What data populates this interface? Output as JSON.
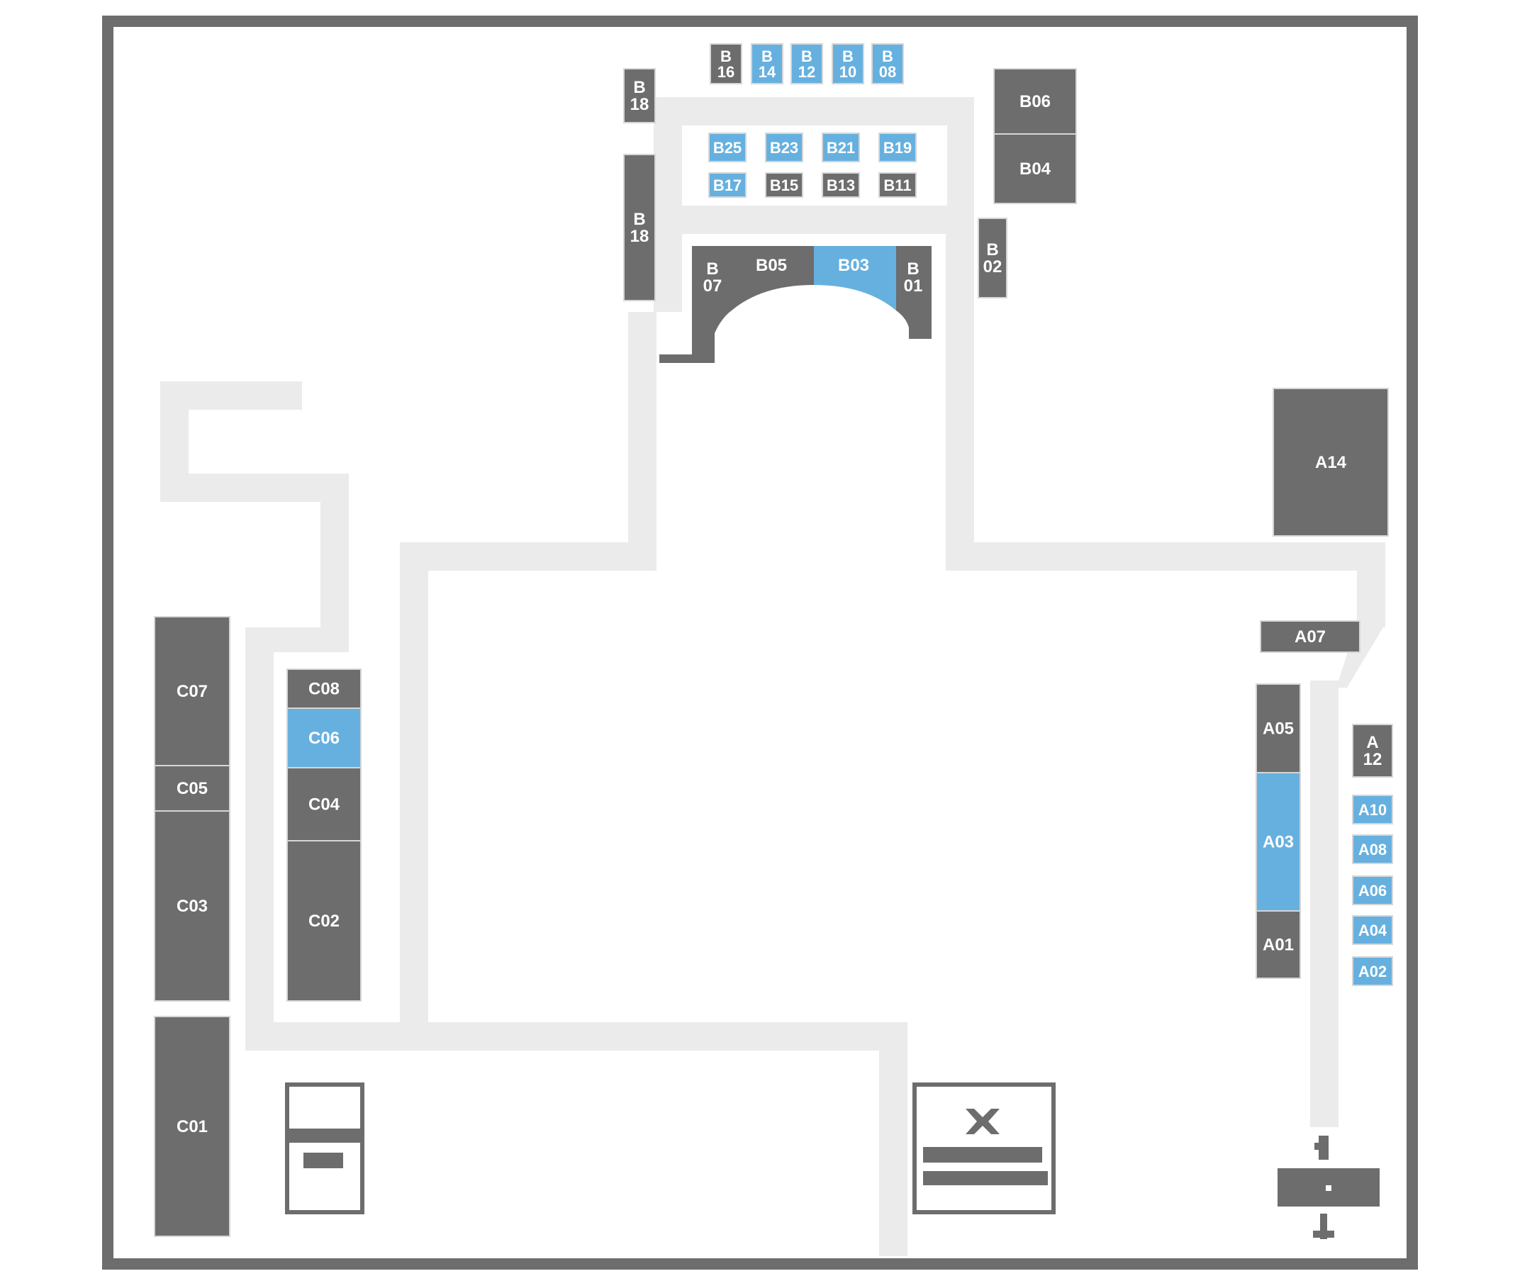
{
  "colors": {
    "occupied": "#6d6d6d",
    "available": "#66b0df",
    "aisle": "#ebebeb",
    "wall": "#6d6d6d",
    "background": "#ffffff",
    "label": "#ffffff"
  },
  "booths": [
    {
      "id": "B16",
      "lines": [
        "B",
        "16"
      ],
      "status": "occupied"
    },
    {
      "id": "B14",
      "lines": [
        "B",
        "14"
      ],
      "status": "available"
    },
    {
      "id": "B12",
      "lines": [
        "B",
        "12"
      ],
      "status": "available"
    },
    {
      "id": "B10",
      "lines": [
        "B",
        "10"
      ],
      "status": "available"
    },
    {
      "id": "B08",
      "lines": [
        "B",
        "08"
      ],
      "status": "available"
    },
    {
      "id": "B18-upper",
      "lines": [
        "B",
        "18"
      ],
      "status": "occupied"
    },
    {
      "id": "B18-lower",
      "lines": [
        "B",
        "18"
      ],
      "status": "occupied"
    },
    {
      "id": "B25",
      "lines": [
        "B25"
      ],
      "status": "available"
    },
    {
      "id": "B23",
      "lines": [
        "B23"
      ],
      "status": "available"
    },
    {
      "id": "B21",
      "lines": [
        "B21"
      ],
      "status": "available"
    },
    {
      "id": "B19",
      "lines": [
        "B19"
      ],
      "status": "available"
    },
    {
      "id": "B17",
      "lines": [
        "B17"
      ],
      "status": "available"
    },
    {
      "id": "B15",
      "lines": [
        "B15"
      ],
      "status": "occupied"
    },
    {
      "id": "B13",
      "lines": [
        "B13"
      ],
      "status": "occupied"
    },
    {
      "id": "B11",
      "lines": [
        "B11"
      ],
      "status": "occupied"
    },
    {
      "id": "B06",
      "lines": [
        "B06"
      ],
      "status": "occupied"
    },
    {
      "id": "B04",
      "lines": [
        "B04"
      ],
      "status": "occupied"
    },
    {
      "id": "B02",
      "lines": [
        "B",
        "02"
      ],
      "status": "occupied"
    },
    {
      "id": "B07",
      "lines": [
        "B",
        "07"
      ],
      "status": "occupied"
    },
    {
      "id": "B05",
      "lines": [
        "B05"
      ],
      "status": "occupied"
    },
    {
      "id": "B03",
      "lines": [
        "B03"
      ],
      "status": "available"
    },
    {
      "id": "B01",
      "lines": [
        "B",
        "01"
      ],
      "status": "occupied"
    },
    {
      "id": "A14",
      "lines": [
        "A14"
      ],
      "status": "occupied"
    },
    {
      "id": "A07",
      "lines": [
        "A07"
      ],
      "status": "occupied"
    },
    {
      "id": "A05",
      "lines": [
        "A05"
      ],
      "status": "occupied"
    },
    {
      "id": "A03",
      "lines": [
        "A03"
      ],
      "status": "available"
    },
    {
      "id": "A01",
      "lines": [
        "A01"
      ],
      "status": "occupied"
    },
    {
      "id": "A12",
      "lines": [
        "A",
        "12"
      ],
      "status": "occupied"
    },
    {
      "id": "A10",
      "lines": [
        "A10"
      ],
      "status": "available"
    },
    {
      "id": "A08",
      "lines": [
        "A08"
      ],
      "status": "available"
    },
    {
      "id": "A06",
      "lines": [
        "A06"
      ],
      "status": "available"
    },
    {
      "id": "A04",
      "lines": [
        "A04"
      ],
      "status": "available"
    },
    {
      "id": "A02",
      "lines": [
        "A02"
      ],
      "status": "available"
    },
    {
      "id": "C07",
      "lines": [
        "C07"
      ],
      "status": "occupied"
    },
    {
      "id": "C05",
      "lines": [
        "C05"
      ],
      "status": "occupied"
    },
    {
      "id": "C03",
      "lines": [
        "C03"
      ],
      "status": "occupied"
    },
    {
      "id": "C01",
      "lines": [
        "C01"
      ],
      "status": "occupied"
    },
    {
      "id": "C08",
      "lines": [
        "C08"
      ],
      "status": "occupied"
    },
    {
      "id": "C06",
      "lines": [
        "C06"
      ],
      "status": "available"
    },
    {
      "id": "C04",
      "lines": [
        "C04"
      ],
      "status": "occupied"
    },
    {
      "id": "C02",
      "lines": [
        "C02"
      ],
      "status": "occupied"
    }
  ],
  "icons": [
    "elevator-icon",
    "stage-icon",
    "entrance-icon"
  ]
}
